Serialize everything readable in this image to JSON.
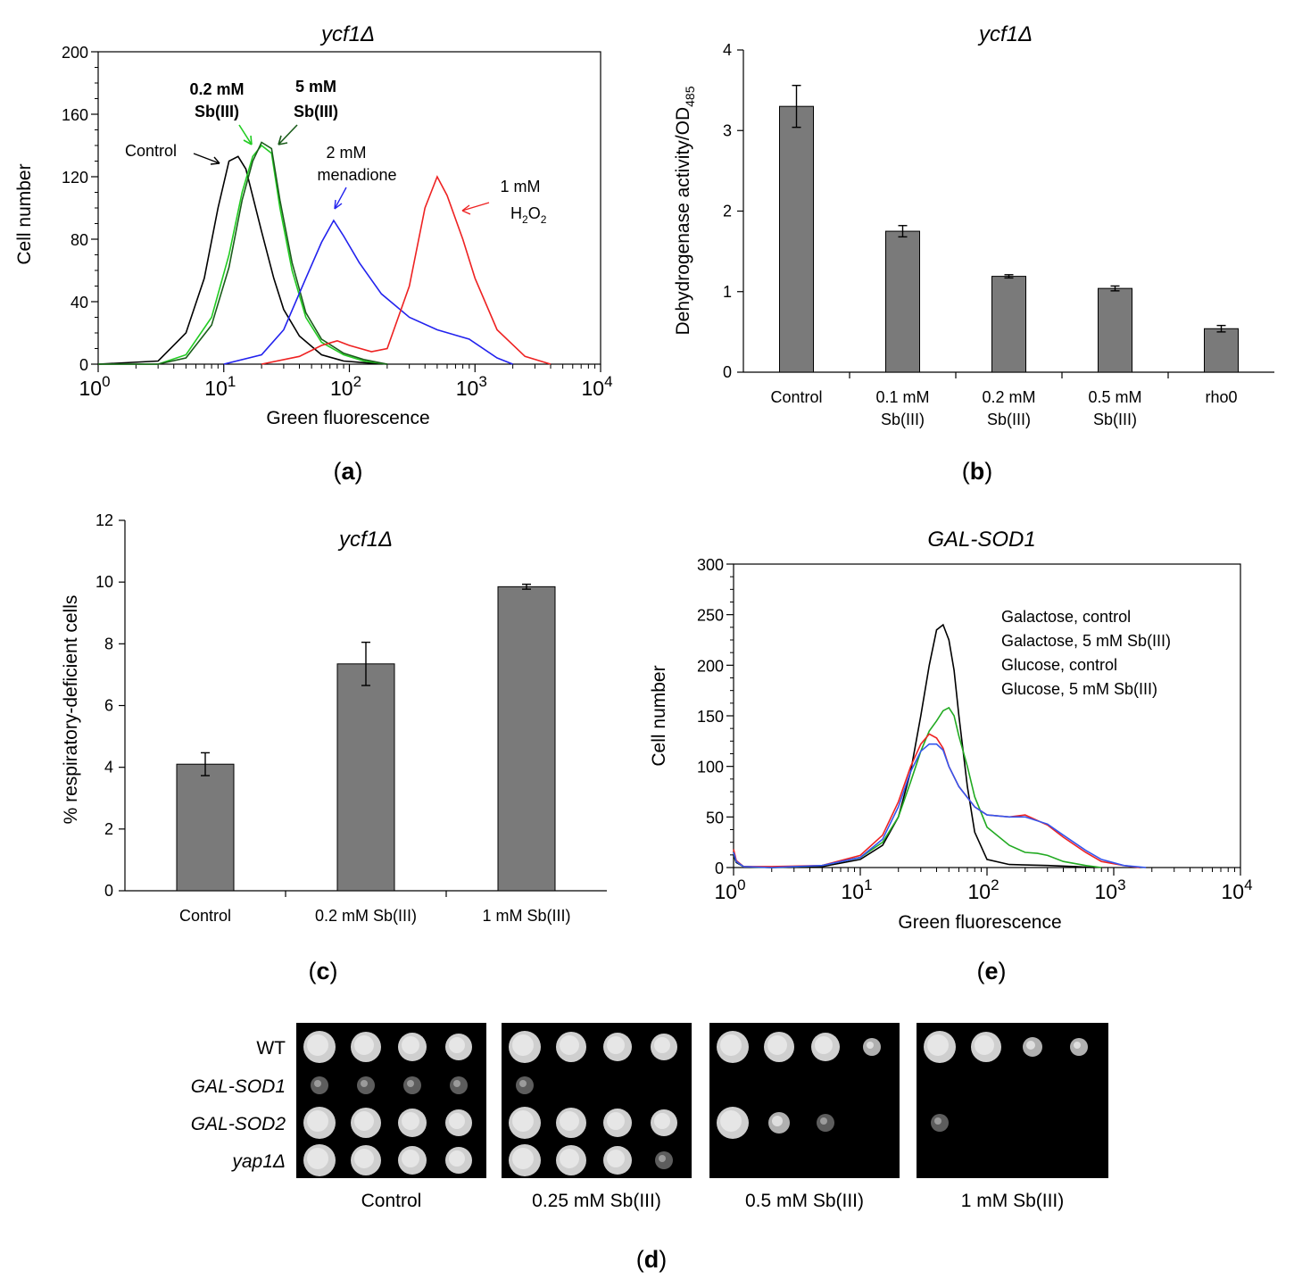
{
  "chart_data": [
    {
      "id": "a",
      "type": "line",
      "title": "ycf1Δ",
      "xlabel": "Green fluorescence",
      "ylabel": "Cell number",
      "xscale": "log",
      "xlim": [
        1,
        10000
      ],
      "ylim": [
        0,
        200
      ],
      "yticks": [
        0,
        40,
        80,
        120,
        160,
        200
      ],
      "xticks": [
        1,
        10,
        100,
        1000,
        10000
      ],
      "xtick_labels": [
        [
          "10",
          "0"
        ],
        [
          "10",
          "1"
        ],
        [
          "10",
          "2"
        ],
        [
          "10",
          "3"
        ],
        [
          "10",
          "4"
        ]
      ],
      "series": [
        {
          "name": "Control",
          "color": "#000000",
          "x": [
            1,
            3,
            5,
            7,
            9,
            11,
            13,
            15,
            20,
            25,
            30,
            40,
            60,
            90,
            130,
            200
          ],
          "y": [
            0,
            2,
            20,
            55,
            100,
            130,
            133,
            125,
            85,
            55,
            35,
            18,
            6,
            2,
            1,
            0
          ]
        },
        {
          "name": "0.2 mM Sb(III)",
          "color": "#22cc22",
          "x": [
            1,
            3,
            5,
            8,
            11,
            14,
            17,
            20,
            24,
            28,
            35,
            45,
            60,
            90,
            130,
            200
          ],
          "y": [
            0,
            0,
            6,
            30,
            70,
            110,
            133,
            140,
            135,
            100,
            60,
            30,
            14,
            6,
            2,
            0
          ]
        },
        {
          "name": "5 mM Sb(III)",
          "color": "#1a5c1a",
          "x": [
            1,
            3,
            5,
            8,
            11,
            14,
            17,
            20,
            24,
            28,
            35,
            45,
            60,
            90,
            130,
            200
          ],
          "y": [
            0,
            0,
            4,
            25,
            62,
            105,
            130,
            142,
            138,
            105,
            65,
            33,
            16,
            7,
            3,
            0
          ]
        },
        {
          "name": "2 mM menadione",
          "color": "#2222ee",
          "x": [
            10,
            20,
            30,
            45,
            60,
            75,
            90,
            120,
            180,
            300,
            500,
            900,
            1500,
            2000
          ],
          "y": [
            0,
            6,
            22,
            55,
            78,
            92,
            82,
            65,
            45,
            30,
            22,
            16,
            4,
            0
          ]
        },
        {
          "name": "1 mM H2O2",
          "color": "#ee2222",
          "x": [
            20,
            40,
            60,
            80,
            100,
            150,
            200,
            300,
            400,
            500,
            600,
            800,
            1000,
            1500,
            2500,
            4000
          ],
          "y": [
            0,
            5,
            12,
            15,
            12,
            8,
            10,
            50,
            100,
            120,
            108,
            80,
            55,
            22,
            5,
            0
          ]
        }
      ],
      "annotations": [
        {
          "text": "Control",
          "color": "#000000"
        },
        {
          "text": "0.2 mM",
          "text2": "Sb(III)",
          "color": "#22cc22"
        },
        {
          "text": "5 mM",
          "text2": "Sb(III)",
          "color": "#1a5c1a"
        },
        {
          "text": "2 mM",
          "text2": "menadione",
          "color": "#2222ee"
        },
        {
          "text": "1 mM",
          "text2": "H",
          "sub": "2",
          "text3": "O",
          "sub2": "2",
          "color": "#ee2222"
        }
      ]
    },
    {
      "id": "b",
      "type": "bar",
      "title": "ycf1Δ",
      "ylabel": "Dehydrogenase  activity/OD",
      "ylabel_sub": "485",
      "ylim": [
        0,
        4
      ],
      "yticks": [
        0,
        1,
        2,
        3,
        4
      ],
      "categories": [
        [
          "Control"
        ],
        [
          "0.1 mM",
          "Sb(III)"
        ],
        [
          "0.2 mM",
          "Sb(III)"
        ],
        [
          "0.5 mM",
          "Sb(III)"
        ],
        [
          "rho0"
        ]
      ],
      "values": [
        3.3,
        1.75,
        1.19,
        1.04,
        0.54
      ],
      "errors": [
        0.26,
        0.07,
        0.02,
        0.03,
        0.04
      ]
    },
    {
      "id": "c",
      "type": "bar",
      "title": "ycf1Δ",
      "ylabel": "% respiratory-deficient  cells",
      "ylim": [
        0,
        12
      ],
      "yticks": [
        0,
        2,
        4,
        6,
        8,
        10,
        12
      ],
      "categories": [
        "Control",
        "0.2 mM Sb(III)",
        "1 mM Sb(III)"
      ],
      "values": [
        4.1,
        7.35,
        9.85
      ],
      "errors": [
        0.37,
        0.7,
        0.08
      ]
    },
    {
      "id": "e",
      "type": "line",
      "title": "GAL-SOD1",
      "xlabel": "Green fluorescence",
      "ylabel": "Cell number",
      "xscale": "log",
      "xlim": [
        1,
        10000
      ],
      "ylim": [
        0,
        300
      ],
      "yticks": [
        0,
        50,
        100,
        150,
        200,
        250,
        300
      ],
      "xticks": [
        1,
        10,
        100,
        1000,
        10000
      ],
      "xtick_labels": [
        [
          "10",
          "0"
        ],
        [
          "10",
          "1"
        ],
        [
          "10",
          "2"
        ],
        [
          "10",
          "3"
        ],
        [
          "10",
          "4"
        ]
      ],
      "series": [
        {
          "name": "Galactose, control",
          "color": "#000000",
          "x": [
            1,
            1.05,
            1.2,
            2,
            5,
            10,
            15,
            20,
            25,
            30,
            35,
            40,
            45,
            50,
            55,
            60,
            70,
            80,
            100,
            150,
            300,
            500,
            700
          ],
          "y": [
            12,
            5,
            1,
            0,
            1,
            8,
            22,
            50,
            95,
            150,
            200,
            235,
            240,
            225,
            195,
            150,
            80,
            35,
            8,
            3,
            2,
            1,
            0
          ]
        },
        {
          "name": "Galactose, 5 mM Sb(III)",
          "color": "#22aa22",
          "x": [
            1,
            1.05,
            1.2,
            2,
            5,
            10,
            15,
            20,
            25,
            30,
            35,
            40,
            45,
            50,
            55,
            60,
            70,
            80,
            100,
            150,
            200,
            250,
            300,
            400,
            600,
            800
          ],
          "y": [
            15,
            6,
            1,
            0,
            2,
            10,
            25,
            50,
            85,
            115,
            135,
            145,
            155,
            158,
            150,
            130,
            100,
            70,
            40,
            22,
            15,
            14,
            12,
            6,
            2,
            0
          ]
        },
        {
          "name": "Glucose, control",
          "color": "#ee2222",
          "x": [
            1,
            1.05,
            1.2,
            2,
            5,
            10,
            15,
            20,
            25,
            30,
            35,
            40,
            45,
            50,
            60,
            80,
            100,
            150,
            200,
            300,
            400,
            600,
            800,
            1200,
            1600
          ],
          "y": [
            18,
            7,
            1,
            1,
            2,
            12,
            32,
            65,
            100,
            122,
            132,
            128,
            118,
            100,
            80,
            60,
            52,
            50,
            52,
            42,
            30,
            15,
            6,
            2,
            0
          ]
        },
        {
          "name": "Glucose, 5 mM Sb(III)",
          "color": "#3355ee",
          "x": [
            1,
            1.05,
            1.2,
            2,
            5,
            10,
            15,
            20,
            25,
            30,
            35,
            40,
            45,
            50,
            60,
            80,
            100,
            150,
            200,
            300,
            400,
            600,
            800,
            1200,
            1800
          ],
          "y": [
            15,
            6,
            1,
            0,
            2,
            10,
            28,
            60,
            95,
            115,
            122,
            122,
            116,
            100,
            80,
            60,
            52,
            50,
            50,
            43,
            32,
            17,
            8,
            2,
            0
          ]
        }
      ]
    }
  ],
  "panel_labels": {
    "a": "(a)",
    "b": "(b)",
    "c": "(c)",
    "d": "(d)",
    "e": "(e)"
  },
  "panel_label_parts": {
    "open": "(",
    "close": ")",
    "a": "a",
    "b": "b",
    "c": "c",
    "d": "d",
    "e": "e"
  },
  "spot_assay": {
    "strains": [
      "WT",
      "GAL-SOD1",
      "GAL-SOD2",
      "yap1Δ"
    ],
    "conditions": [
      "Control",
      "0.25 mM Sb(III)",
      "0.5 mM Sb(III)",
      "1 mM Sb(III)"
    ],
    "growth": [
      [
        [
          3,
          3,
          3,
          3
        ],
        [
          1,
          1,
          1,
          1
        ],
        [
          3,
          3,
          3,
          3
        ],
        [
          3,
          3,
          3,
          3
        ]
      ],
      [
        [
          3,
          3,
          3,
          3
        ],
        [
          1,
          0,
          0,
          0
        ],
        [
          3,
          3,
          3,
          3
        ],
        [
          3,
          3,
          3,
          1
        ]
      ],
      [
        [
          3,
          3,
          3,
          2
        ],
        [
          0,
          0,
          0,
          0
        ],
        [
          3,
          2,
          1,
          0
        ],
        [
          0,
          0,
          0,
          0
        ]
      ],
      [
        [
          3,
          3,
          2,
          2
        ],
        [
          0,
          0,
          0,
          0
        ],
        [
          1,
          0,
          0,
          0
        ],
        [
          0,
          0,
          0,
          0
        ]
      ]
    ]
  }
}
